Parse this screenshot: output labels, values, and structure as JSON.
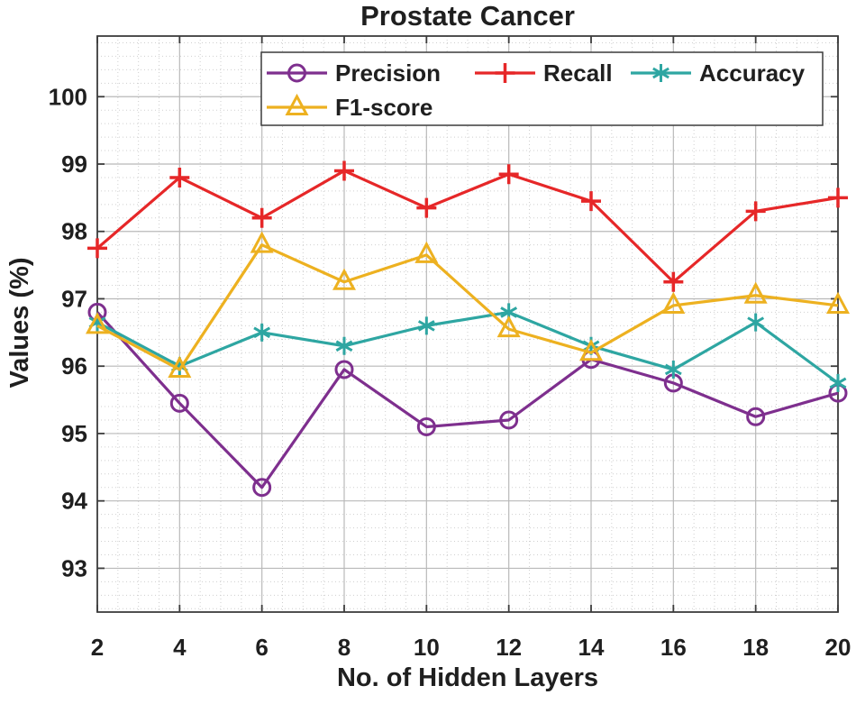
{
  "chart_data": {
    "type": "line",
    "title": "Prostate Cancer",
    "xlabel": "No. of Hidden Layers",
    "ylabel": "Values (%)",
    "x": [
      2,
      4,
      6,
      8,
      10,
      12,
      14,
      16,
      18,
      20
    ],
    "x_ticks": [
      "2",
      "4",
      "6",
      "8",
      "10",
      "12",
      "14",
      "16",
      "18",
      "20"
    ],
    "y_ticks": [
      "93",
      "94",
      "95",
      "96",
      "97",
      "98",
      "99",
      "100"
    ],
    "xlim": [
      2,
      20
    ],
    "ylim": [
      92.35,
      100.9
    ],
    "grid": {
      "major": true,
      "minor": true,
      "minor_x_step": 0.5,
      "minor_y_step": 0.2
    },
    "legend": {
      "position": "top-inside",
      "rows": [
        [
          "Precision",
          "Recall",
          "Accuracy"
        ],
        [
          "F1-score"
        ]
      ]
    },
    "series": [
      {
        "name": "Precision",
        "color": "#7E2F8E",
        "marker": "circle",
        "values": [
          96.8,
          95.45,
          94.2,
          95.95,
          95.1,
          95.2,
          96.1,
          95.75,
          95.25,
          95.6
        ]
      },
      {
        "name": "Recall",
        "color": "#E62728",
        "marker": "plus",
        "values": [
          97.75,
          98.8,
          98.2,
          98.9,
          98.35,
          98.85,
          98.45,
          97.25,
          98.3,
          98.5
        ]
      },
      {
        "name": "Accuracy",
        "color": "#2EA6A2",
        "marker": "asterisk",
        "values": [
          96.65,
          96.0,
          96.5,
          96.3,
          96.6,
          96.8,
          96.3,
          95.95,
          96.65,
          95.75
        ]
      },
      {
        "name": "F1-score",
        "color": "#EDB120",
        "marker": "triangle-up",
        "values": [
          96.6,
          95.95,
          97.8,
          97.25,
          97.65,
          96.55,
          96.2,
          96.9,
          97.05,
          96.9
        ]
      }
    ],
    "style_colors": {
      "axis": "#3C3C3C",
      "major_grid": "#B9B9B9",
      "minor_grid": "#CFCFCF",
      "text": "#1F1F1F",
      "legend_background": "#FFFFFF"
    }
  }
}
